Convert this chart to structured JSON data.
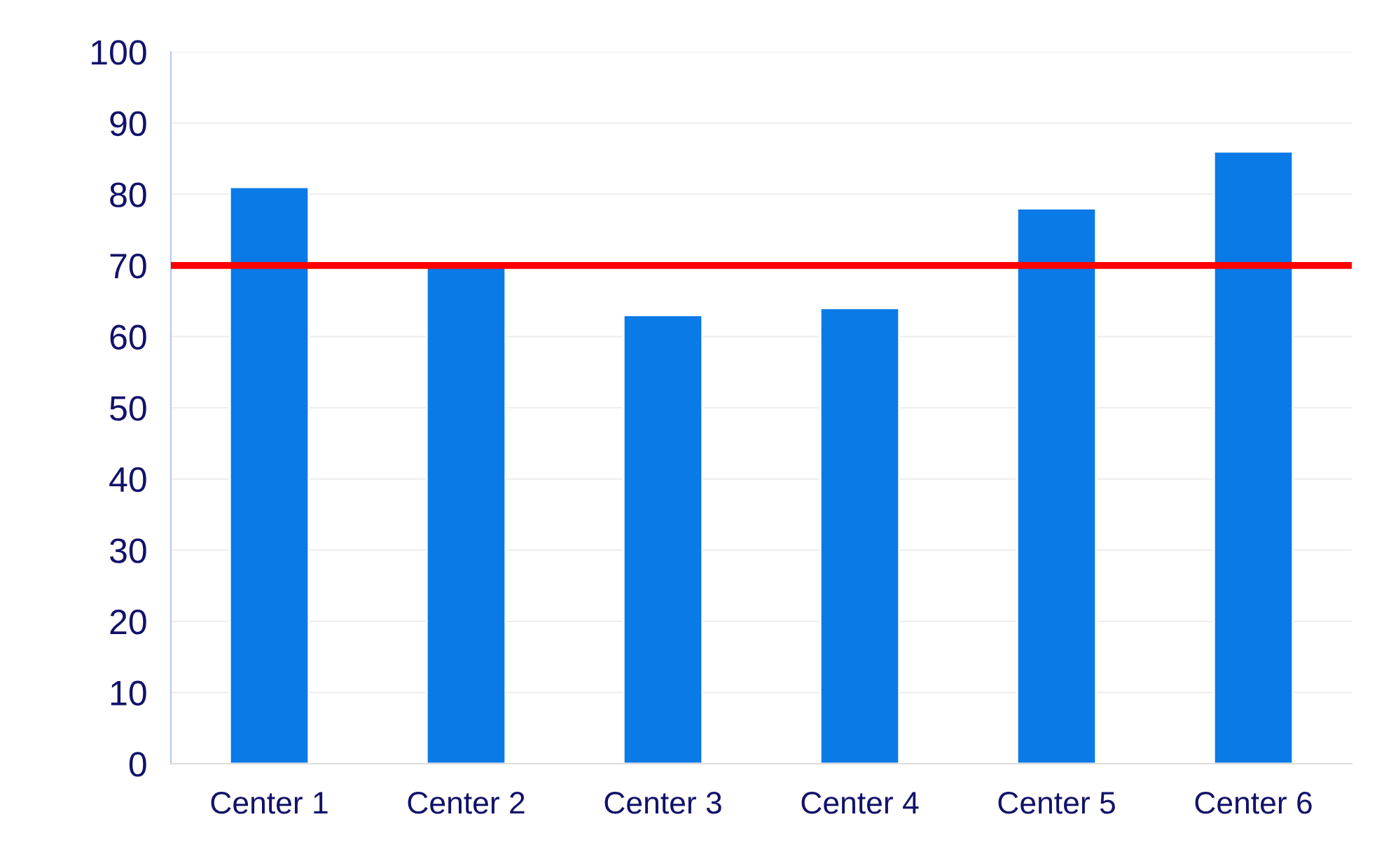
{
  "chart_data": {
    "type": "bar",
    "categories": [
      "Center 1",
      "Center 2",
      "Center 3",
      "Center 4",
      "Center 5",
      "Center 6"
    ],
    "values": [
      81,
      70,
      63,
      64,
      78,
      86
    ],
    "color": "#0a7ae6",
    "ylim": [
      0,
      100
    ],
    "yticks": [
      0,
      10,
      20,
      30,
      40,
      50,
      60,
      70,
      80,
      90,
      100
    ],
    "grid": "y",
    "ref_lines": [
      {
        "axis": "y",
        "value": 70,
        "color": "#ff0000",
        "line_style": "solid"
      }
    ]
  }
}
